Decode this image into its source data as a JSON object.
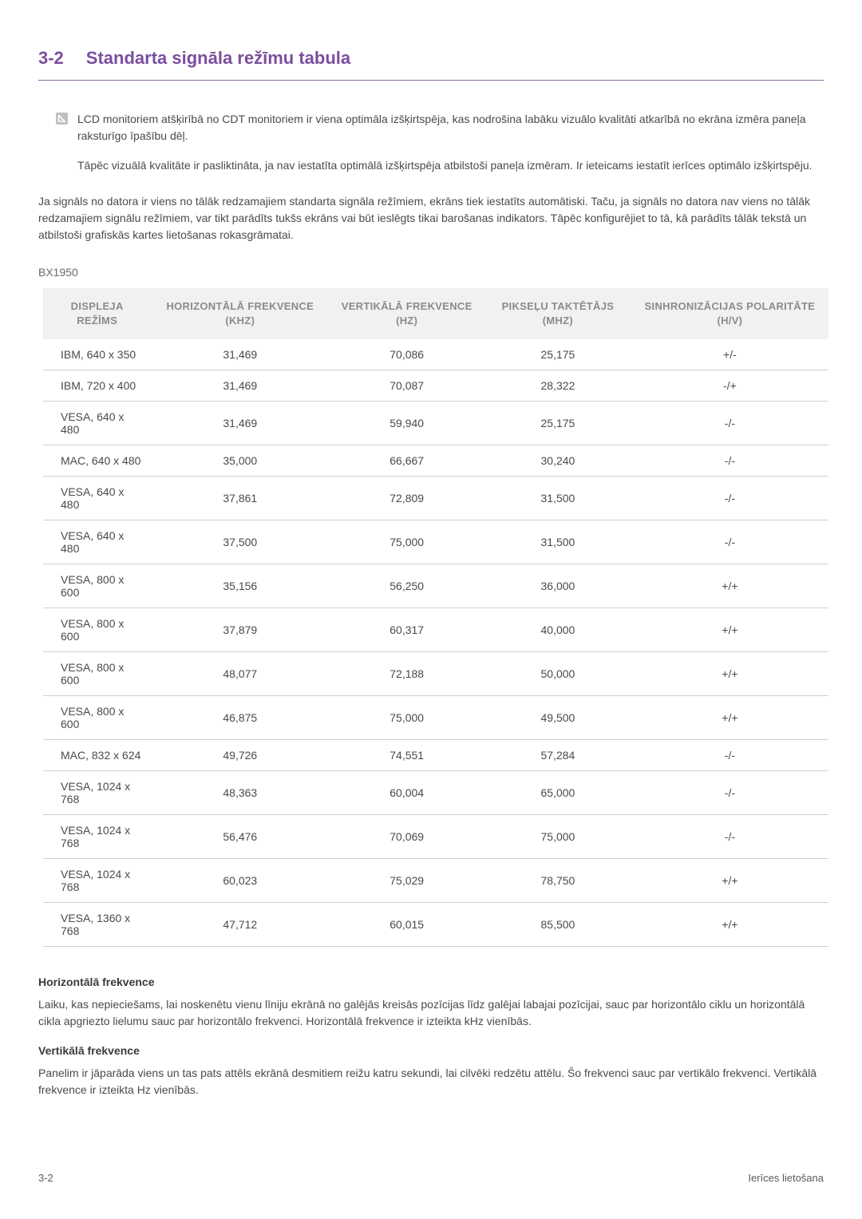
{
  "section": {
    "number": "3-2",
    "title": "Standarta signāla režīmu tabula"
  },
  "notes": {
    "para1": "LCD monitoriem atšķirībā no CDT monitoriem ir viena optimāla izšķirtspēja, kas nodrošina labāku vizuālo kvalitāti atkarībā no ekrāna izmēra paneļa raksturīgo īpašību dēļ.",
    "para2": "Tāpēc vizuālā kvalitāte ir pasliktināta, ja nav iestatīta optimālā izšķirtspēja atbilstoši paneļa izmēram. Ir ieteicams iestatīt ierīces optimālo izšķirtspēju."
  },
  "mainPara": "Ja signāls no datora ir viens no tālāk redzamajiem standarta signāla režīmiem, ekrāns tiek iestatīts automātiski. Taču, ja signāls no datora nav viens no tālāk redzamajiem signālu režīmiem, var tikt parādīts tukšs ekrāns vai būt ieslēgts tikai barošanas indikators. Tāpēc konfigurējiet to tā, kā parādīts tālāk tekstā un atbilstoši grafiskās kartes lietošanas rokasgrāmatai.",
  "model": "BX1950",
  "table": {
    "headers": {
      "col0": "DISPLEJA REŽĪMS",
      "col1": "HORIZONTĀLĀ FREKVENCE (KHZ)",
      "col2": "VERTIKĀLĀ FREKVENCE (HZ)",
      "col3": "PIKSEĻU TAKTĒTĀJS (MHZ)",
      "col4": "SINHRONIZĀCIJAS POLARITĀTE (H/V)"
    },
    "header_bg": "#f1f1f1",
    "header_color": "#8b8b8b",
    "header_fontsize": 13,
    "cell_fontsize": 14,
    "cell_color": "#4a4a4a",
    "border_color": "#cfcfcf",
    "column_widths_pct": [
      20,
      20,
      20,
      20,
      20
    ],
    "rows": [
      {
        "c0": "IBM, 640 x 350",
        "c1": "31,469",
        "c2": "70,086",
        "c3": "25,175",
        "c4": "+/-"
      },
      {
        "c0": "IBM, 720 x 400",
        "c1": "31,469",
        "c2": "70,087",
        "c3": "28,322",
        "c4": "-/+"
      },
      {
        "c0": "VESA, 640 x 480",
        "c1": "31,469",
        "c2": "59,940",
        "c3": "25,175",
        "c4": "-/-"
      },
      {
        "c0": "MAC, 640 x 480",
        "c1": "35,000",
        "c2": "66,667",
        "c3": "30,240",
        "c4": "-/-"
      },
      {
        "c0": "VESA, 640 x 480",
        "c1": "37,861",
        "c2": "72,809",
        "c3": "31,500",
        "c4": "-/-"
      },
      {
        "c0": "VESA, 640 x 480",
        "c1": "37,500",
        "c2": "75,000",
        "c3": "31,500",
        "c4": "-/-"
      },
      {
        "c0": "VESA, 800 x 600",
        "c1": "35,156",
        "c2": "56,250",
        "c3": "36,000",
        "c4": "+/+"
      },
      {
        "c0": "VESA, 800 x 600",
        "c1": "37,879",
        "c2": "60,317",
        "c3": "40,000",
        "c4": "+/+"
      },
      {
        "c0": "VESA, 800 x 600",
        "c1": "48,077",
        "c2": "72,188",
        "c3": "50,000",
        "c4": "+/+"
      },
      {
        "c0": "VESA, 800 x 600",
        "c1": "46,875",
        "c2": "75,000",
        "c3": "49,500",
        "c4": "+/+"
      },
      {
        "c0": "MAC, 832 x 624",
        "c1": "49,726",
        "c2": "74,551",
        "c3": "57,284",
        "c4": "-/-"
      },
      {
        "c0": "VESA, 1024 x 768",
        "c1": "48,363",
        "c2": "60,004",
        "c3": "65,000",
        "c4": "-/-"
      },
      {
        "c0": "VESA, 1024 x 768",
        "c1": "56,476",
        "c2": "70,069",
        "c3": "75,000",
        "c4": "-/-"
      },
      {
        "c0": "VESA, 1024 x 768",
        "c1": "60,023",
        "c2": "75,029",
        "c3": "78,750",
        "c4": "+/+"
      },
      {
        "c0": "VESA, 1360 x 768",
        "c1": "47,712",
        "c2": "60,015",
        "c3": "85,500",
        "c4": "+/+"
      }
    ]
  },
  "definitions": {
    "hTitle": "Horizontālā frekvence",
    "hText": "Laiku, kas nepieciešams, lai noskenētu vienu līniju ekrānā no galējās kreisās pozīcijas līdz galējai labajai pozīcijai, sauc par horizontālo ciklu un horizontālā cikla apgriezto lielumu sauc par horizontālo frekvenci. Horizontālā frekvence ir izteikta kHz vienībās.",
    "vTitle": "Vertikālā frekvence",
    "vText": "Panelim ir jāparāda viens un tas pats attēls ekrānā desmitiem reižu katru sekundi, lai cilvēki redzētu attēlu. Šo frekvenci sauc par vertikālo frekvenci. Vertikālā frekvence ir izteikta Hz vienībās."
  },
  "footer": {
    "left": "3-2",
    "right": "Ierīces lietošana"
  },
  "colors": {
    "accent": "#7a4e9e",
    "text": "#4a4a4a",
    "muted": "#6a6a6a",
    "icon_bg": "#c0c0c0",
    "icon_stroke": "#ffffff"
  }
}
